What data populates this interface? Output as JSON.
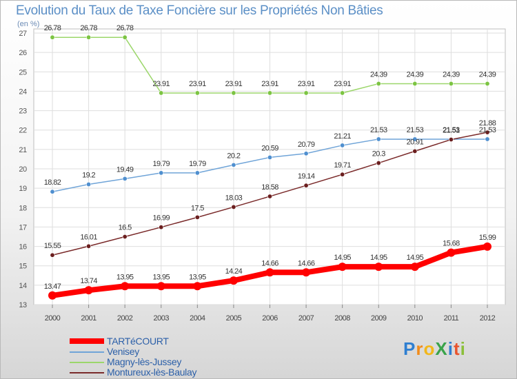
{
  "title": "Evolution du Taux de Taxe Foncière sur les Propriétés Non Bâties",
  "unit_label": "(en %)",
  "logo": {
    "text": "Proxiti",
    "letters": [
      {
        "ch": "P",
        "color": "#2f7fd1"
      },
      {
        "ch": "r",
        "color": "#f28c1b"
      },
      {
        "ch": "o",
        "color": "#f2b71b"
      },
      {
        "ch": "X",
        "color": "#3aa34a"
      },
      {
        "ch": "i",
        "color": "#2f7fd1"
      },
      {
        "ch": "t",
        "color": "#e8542f"
      },
      {
        "ch": "i",
        "color": "#8bbf3a"
      }
    ]
  },
  "chart_data": {
    "type": "line",
    "x": [
      "2000",
      "2001",
      "2002",
      "2003",
      "2004",
      "2005",
      "2006",
      "2007",
      "2008",
      "2009",
      "2010",
      "2011",
      "2012"
    ],
    "ylim": [
      13,
      27
    ],
    "yticks": [
      "13",
      "14",
      "15",
      "16",
      "17",
      "18",
      "19",
      "20",
      "21",
      "22",
      "23",
      "24",
      "25",
      "26",
      "27"
    ],
    "grid": true,
    "legend_position": "bottom-left",
    "series": [
      {
        "name": "TARTéCOURT",
        "color": "#ff0000",
        "width": 8,
        "point_color": "#ff0000",
        "values": [
          13.47,
          13.74,
          13.95,
          13.95,
          13.95,
          14.24,
          14.66,
          14.66,
          14.95,
          14.95,
          14.95,
          15.68,
          15.99
        ],
        "labels": [
          "13.47",
          "13.74",
          "13.95",
          "13.95",
          "13.95",
          "14.24",
          "14.66",
          "14.66",
          "14.95",
          "14.95",
          "14.95",
          "15.68",
          "15.99"
        ]
      },
      {
        "name": "Venisey",
        "color": "#6fa4d8",
        "width": 1.5,
        "point_color": "#4f8fcf",
        "values": [
          18.82,
          19.2,
          19.49,
          19.79,
          19.79,
          20.2,
          20.59,
          20.79,
          21.21,
          21.53,
          21.53,
          21.53,
          21.53
        ],
        "labels": [
          "18.82",
          "19.2",
          "19.49",
          "19.79",
          "19.79",
          "20.2",
          "20.59",
          "20.79",
          "21.21",
          "21.53",
          "21.53",
          "21.53",
          "21.53"
        ]
      },
      {
        "name": "Magny-lès-Jussey",
        "color": "#9bd66a",
        "width": 1.5,
        "point_color": "#7cc442",
        "values": [
          26.78,
          26.78,
          26.78,
          23.91,
          23.91,
          23.91,
          23.91,
          23.91,
          23.91,
          24.39,
          24.39,
          24.39,
          24.39
        ],
        "labels": [
          "26.78",
          "26.78",
          "26.78",
          "23.91",
          "23.91",
          "23.91",
          "23.91",
          "23.91",
          "23.91",
          "24.39",
          "24.39",
          "24.39",
          "24.39"
        ]
      },
      {
        "name": "Montureux-lès-Baulay",
        "color": "#7a2a2a",
        "width": 1.5,
        "point_color": "#6b1f1f",
        "values": [
          15.55,
          16.01,
          16.5,
          16.99,
          17.5,
          18.03,
          18.58,
          19.14,
          19.71,
          20.3,
          20.91,
          21.51,
          21.88
        ],
        "labels": [
          "15.55",
          "16.01",
          "16.5",
          "16.99",
          "17.5",
          "18.03",
          "18.58",
          "19.14",
          "19.71",
          "20.3",
          "20.91",
          "21.51",
          "21.88"
        ]
      }
    ]
  }
}
